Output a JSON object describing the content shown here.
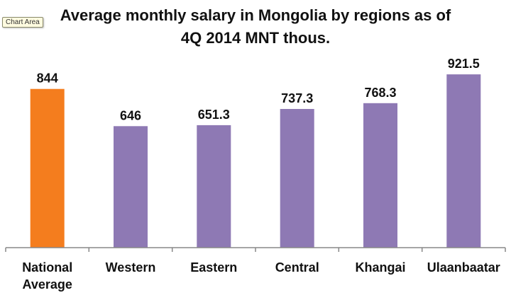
{
  "tooltip": {
    "label": "Chart Area"
  },
  "colors": {
    "highlight": "#f47d1e",
    "bar": "#8e79b4",
    "axis": "#888888",
    "text": "#111111"
  },
  "chart_data": {
    "type": "bar",
    "title": "Average monthly salary in Mongolia by regions as of 4Q 2014 MNT thous.",
    "title_lines": [
      "Average monthly salary in Mongolia by regions as of",
      "4Q 2014 MNT thous."
    ],
    "categories": [
      "National Average",
      "Western",
      "Eastern",
      "Central",
      "Khangai",
      "Ulaanbaatar"
    ],
    "category_lines": [
      [
        "National",
        "Average"
      ],
      [
        "Western"
      ],
      [
        "Eastern"
      ],
      [
        "Central"
      ],
      [
        "Khangai"
      ],
      [
        "Ulaanbaatar"
      ]
    ],
    "values": [
      844,
      646,
      651.3,
      737.3,
      768.3,
      921.5
    ],
    "value_labels": [
      "844",
      "646",
      "651.3",
      "737.3",
      "768.3",
      "921.5"
    ],
    "highlight_index": 0,
    "ylim": [
      0,
      1000
    ],
    "xlabel": "",
    "ylabel": "",
    "grid": false,
    "legend": "none"
  }
}
